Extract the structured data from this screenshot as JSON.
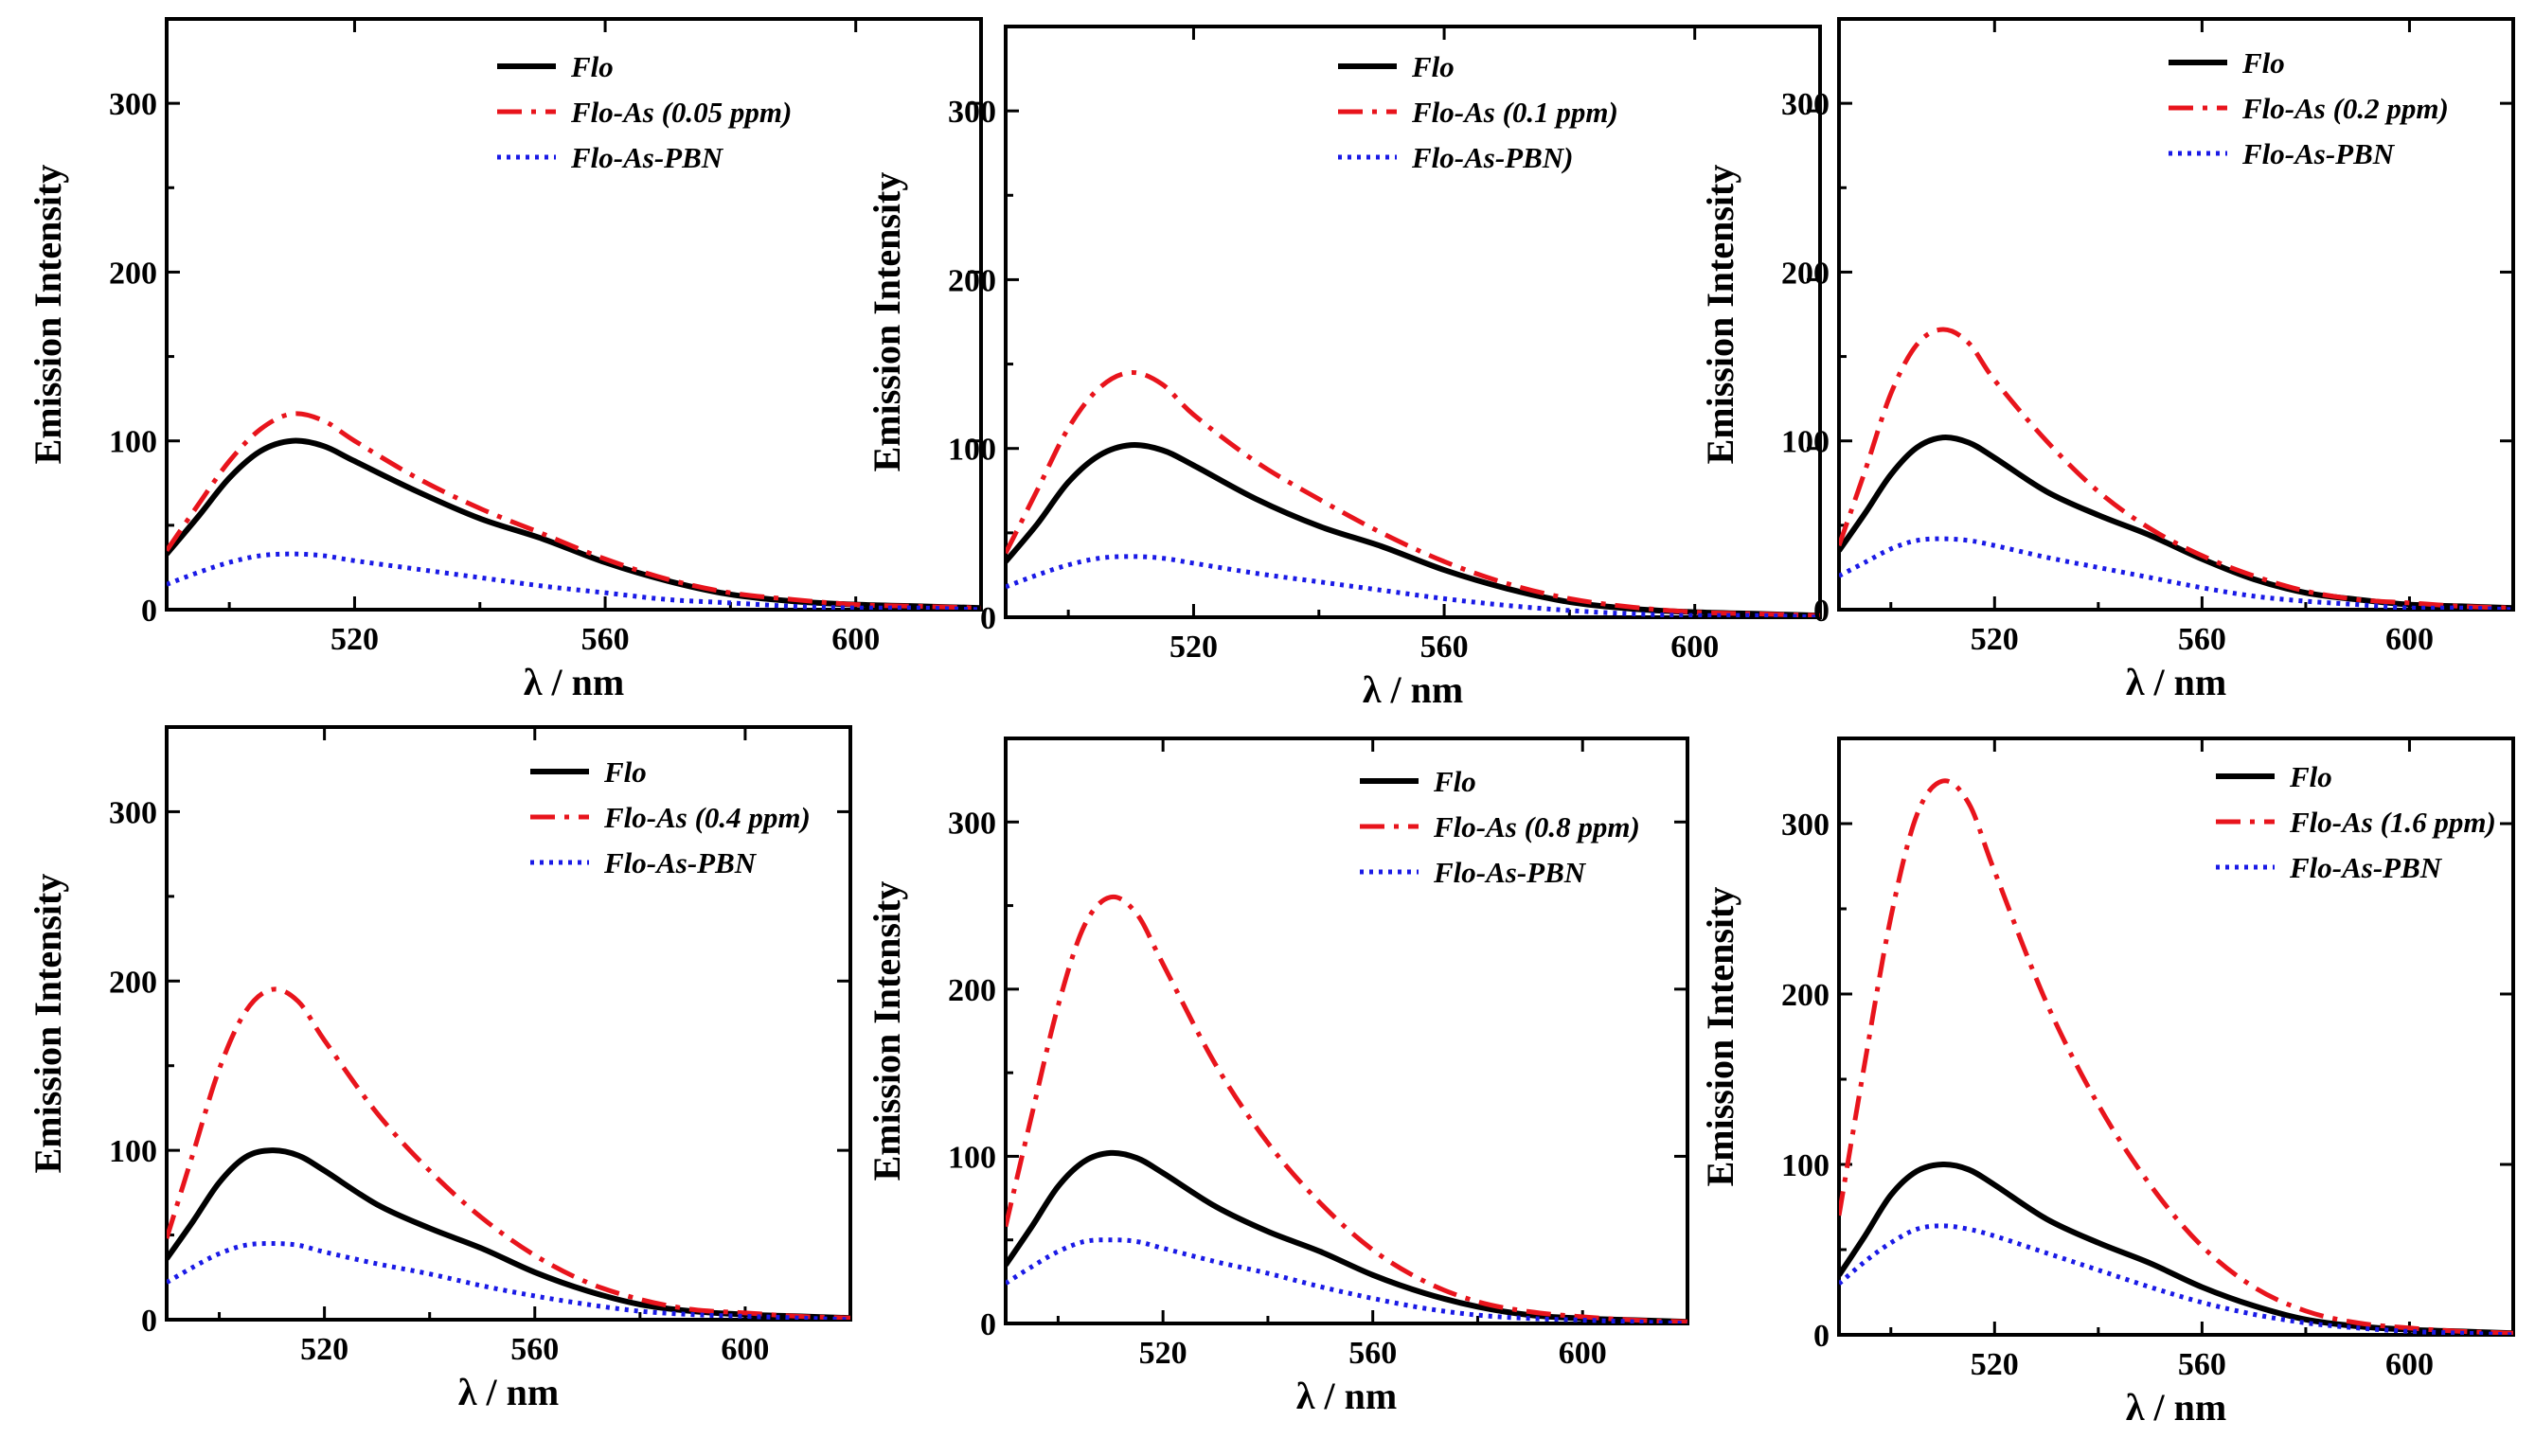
{
  "chart_data": [
    {
      "type": "line",
      "xlabel": "λ / nm",
      "ylabel": "Emission Intensity",
      "xlim": [
        490,
        620
      ],
      "ylim": [
        0,
        350
      ],
      "xticks": [
        "520",
        "560",
        "600"
      ],
      "yticks": [
        "0",
        "100",
        "200",
        "300"
      ],
      "series": [
        {
          "name": "Flo",
          "x": [
            490,
            495,
            500,
            505,
            510,
            515,
            520,
            530,
            540,
            550,
            560,
            570,
            580,
            590,
            600,
            610,
            620
          ],
          "values": [
            33,
            55,
            78,
            94,
            100,
            97,
            88,
            70,
            54,
            42,
            28,
            17,
            9,
            5,
            3,
            2,
            1
          ]
        },
        {
          "name": "Flo-As (0.05 ppm)",
          "x": [
            490,
            495,
            500,
            505,
            510,
            515,
            520,
            530,
            540,
            550,
            560,
            570,
            580,
            590,
            600,
            610,
            620
          ],
          "values": [
            35,
            62,
            88,
            107,
            116,
            112,
            100,
            78,
            60,
            45,
            30,
            18,
            10,
            6,
            3,
            2,
            1
          ]
        },
        {
          "name": "Flo-As-PBN",
          "x": [
            490,
            495,
            500,
            505,
            510,
            515,
            520,
            530,
            540,
            550,
            560,
            570,
            580,
            590,
            600,
            610,
            620
          ],
          "values": [
            15,
            22,
            28,
            32,
            33,
            32,
            29,
            24,
            19,
            14,
            10,
            6,
            4,
            2,
            1,
            1,
            0
          ]
        }
      ]
    },
    {
      "type": "line",
      "xlabel": "λ / nm",
      "ylabel": "Emission Intensity",
      "xlim": [
        490,
        620
      ],
      "ylim": [
        0,
        350
      ],
      "xticks": [
        "520",
        "560",
        "600"
      ],
      "yticks": [
        "0",
        "100",
        "200",
        "300"
      ],
      "series": [
        {
          "name": "Flo",
          "x": [
            490,
            495,
            500,
            505,
            510,
            515,
            520,
            530,
            540,
            550,
            560,
            570,
            580,
            590,
            600,
            610,
            620
          ],
          "values": [
            33,
            55,
            80,
            96,
            102,
            99,
            90,
            70,
            54,
            42,
            28,
            17,
            9,
            5,
            3,
            2,
            1
          ]
        },
        {
          "name": "Flo-As (0.1 ppm)",
          "x": [
            490,
            495,
            500,
            505,
            510,
            515,
            520,
            530,
            540,
            550,
            560,
            570,
            580,
            590,
            600,
            610,
            620
          ],
          "values": [
            38,
            75,
            112,
            136,
            145,
            138,
            120,
            92,
            70,
            50,
            33,
            20,
            11,
            6,
            3,
            2,
            1
          ]
        },
        {
          "name": "Flo-As-PBN)",
          "x": [
            490,
            495,
            500,
            505,
            510,
            515,
            520,
            530,
            540,
            550,
            560,
            570,
            580,
            590,
            600,
            610,
            620
          ],
          "values": [
            18,
            25,
            31,
            35,
            36,
            35,
            32,
            26,
            21,
            16,
            11,
            7,
            4,
            2,
            1,
            1,
            0
          ]
        }
      ]
    },
    {
      "type": "line",
      "xlabel": "λ / nm",
      "ylabel": "Emission Intensity",
      "xlim": [
        490,
        620
      ],
      "ylim": [
        0,
        350
      ],
      "xticks": [
        "520",
        "560",
        "600"
      ],
      "yticks": [
        "0",
        "100",
        "200",
        "300"
      ],
      "series": [
        {
          "name": "Flo",
          "x": [
            490,
            495,
            500,
            505,
            510,
            515,
            520,
            530,
            540,
            550,
            560,
            570,
            580,
            590,
            600,
            610,
            620
          ],
          "values": [
            35,
            57,
            80,
            96,
            102,
            99,
            90,
            70,
            56,
            44,
            30,
            18,
            10,
            6,
            3,
            2,
            1
          ]
        },
        {
          "name": "Flo-As (0.2 ppm)",
          "x": [
            490,
            495,
            500,
            505,
            510,
            515,
            520,
            530,
            540,
            550,
            560,
            570,
            580,
            590,
            600,
            610,
            620
          ],
          "values": [
            38,
            82,
            128,
            157,
            166,
            158,
            136,
            100,
            70,
            48,
            32,
            20,
            11,
            6,
            4,
            2,
            1
          ]
        },
        {
          "name": "Flo-As-PBN",
          "x": [
            490,
            495,
            500,
            505,
            510,
            515,
            520,
            530,
            540,
            550,
            560,
            570,
            580,
            590,
            600,
            610,
            620
          ],
          "values": [
            20,
            28,
            36,
            41,
            42,
            41,
            38,
            31,
            25,
            19,
            13,
            8,
            5,
            3,
            1,
            1,
            0
          ]
        }
      ]
    },
    {
      "type": "line",
      "xlabel": "λ / nm",
      "ylabel": "Emission Intensity",
      "xlim": [
        490,
        620
      ],
      "ylim": [
        0,
        350
      ],
      "xticks": [
        "520",
        "560",
        "600"
      ],
      "yticks": [
        "0",
        "100",
        "200",
        "300"
      ],
      "series": [
        {
          "name": "Flo",
          "x": [
            490,
            495,
            500,
            505,
            510,
            515,
            520,
            530,
            540,
            550,
            560,
            570,
            580,
            590,
            600,
            610,
            620
          ],
          "values": [
            36,
            58,
            81,
            96,
            100,
            97,
            88,
            68,
            54,
            42,
            28,
            17,
            9,
            5,
            3,
            2,
            1
          ]
        },
        {
          "name": "Flo-As (0.4 ppm)",
          "x": [
            490,
            495,
            500,
            505,
            510,
            515,
            520,
            530,
            540,
            550,
            560,
            570,
            580,
            590,
            600,
            610,
            620
          ],
          "values": [
            48,
            98,
            148,
            182,
            195,
            188,
            165,
            122,
            88,
            60,
            38,
            22,
            12,
            6,
            4,
            2,
            1
          ]
        },
        {
          "name": "Flo-As-PBN",
          "x": [
            490,
            495,
            500,
            505,
            510,
            515,
            520,
            530,
            540,
            550,
            560,
            570,
            580,
            590,
            600,
            610,
            620
          ],
          "values": [
            22,
            31,
            39,
            44,
            45,
            44,
            40,
            33,
            27,
            20,
            14,
            9,
            5,
            3,
            2,
            1,
            0
          ]
        }
      ]
    },
    {
      "type": "line",
      "xlabel": "λ / nm",
      "ylabel": "Emission Intensity",
      "xlim": [
        490,
        620
      ],
      "ylim": [
        0,
        350
      ],
      "xticks": [
        "520",
        "560",
        "600"
      ],
      "yticks": [
        "0",
        "100",
        "200",
        "300"
      ],
      "series": [
        {
          "name": "Flo",
          "x": [
            490,
            495,
            500,
            505,
            510,
            515,
            520,
            530,
            540,
            550,
            560,
            570,
            580,
            590,
            600,
            610,
            620
          ],
          "values": [
            35,
            58,
            82,
            97,
            102,
            99,
            90,
            70,
            55,
            43,
            29,
            18,
            10,
            5,
            3,
            2,
            1
          ]
        },
        {
          "name": "Flo-As (0.8 ppm)",
          "x": [
            490,
            495,
            500,
            505,
            510,
            515,
            520,
            530,
            540,
            550,
            560,
            570,
            580,
            590,
            600,
            610,
            620
          ],
          "values": [
            58,
            125,
            190,
            238,
            255,
            245,
            215,
            155,
            108,
            72,
            44,
            25,
            13,
            7,
            4,
            2,
            1
          ]
        },
        {
          "name": "Flo-As-PBN",
          "x": [
            490,
            495,
            500,
            505,
            510,
            515,
            520,
            530,
            540,
            550,
            560,
            570,
            580,
            590,
            600,
            610,
            620
          ],
          "values": [
            24,
            34,
            43,
            49,
            50,
            49,
            45,
            37,
            30,
            22,
            15,
            9,
            5,
            3,
            2,
            1,
            0
          ]
        }
      ]
    },
    {
      "type": "line",
      "xlabel": "λ / nm",
      "ylabel": "Emission Intensity",
      "xlim": [
        490,
        620
      ],
      "ylim": [
        0,
        350
      ],
      "xticks": [
        "520",
        "560",
        "600"
      ],
      "yticks": [
        "0",
        "100",
        "200",
        "300"
      ],
      "series": [
        {
          "name": "Flo",
          "x": [
            490,
            495,
            500,
            505,
            510,
            515,
            520,
            530,
            540,
            550,
            560,
            570,
            580,
            590,
            600,
            610,
            620
          ],
          "values": [
            35,
            58,
            82,
            96,
            100,
            97,
            88,
            68,
            54,
            42,
            28,
            17,
            9,
            5,
            3,
            2,
            1
          ]
        },
        {
          "name": "Flo-As (1.6 ppm)",
          "x": [
            490,
            495,
            500,
            505,
            510,
            515,
            520,
            530,
            540,
            550,
            560,
            570,
            580,
            590,
            600,
            610,
            620
          ],
          "values": [
            70,
            160,
            245,
            305,
            325,
            312,
            272,
            195,
            135,
            88,
            52,
            28,
            14,
            7,
            4,
            2,
            1
          ]
        },
        {
          "name": "Flo-As-PBN",
          "x": [
            490,
            495,
            500,
            505,
            510,
            515,
            520,
            530,
            540,
            550,
            560,
            570,
            580,
            590,
            600,
            610,
            620
          ],
          "values": [
            30,
            43,
            54,
            62,
            64,
            62,
            58,
            48,
            38,
            28,
            19,
            12,
            7,
            4,
            2,
            1,
            0
          ]
        }
      ]
    }
  ],
  "colors": {
    "flo": "#000000",
    "flo_as": "#e8141c",
    "flo_as_pbn": "#1a1ae6",
    "axis": "#000000"
  }
}
